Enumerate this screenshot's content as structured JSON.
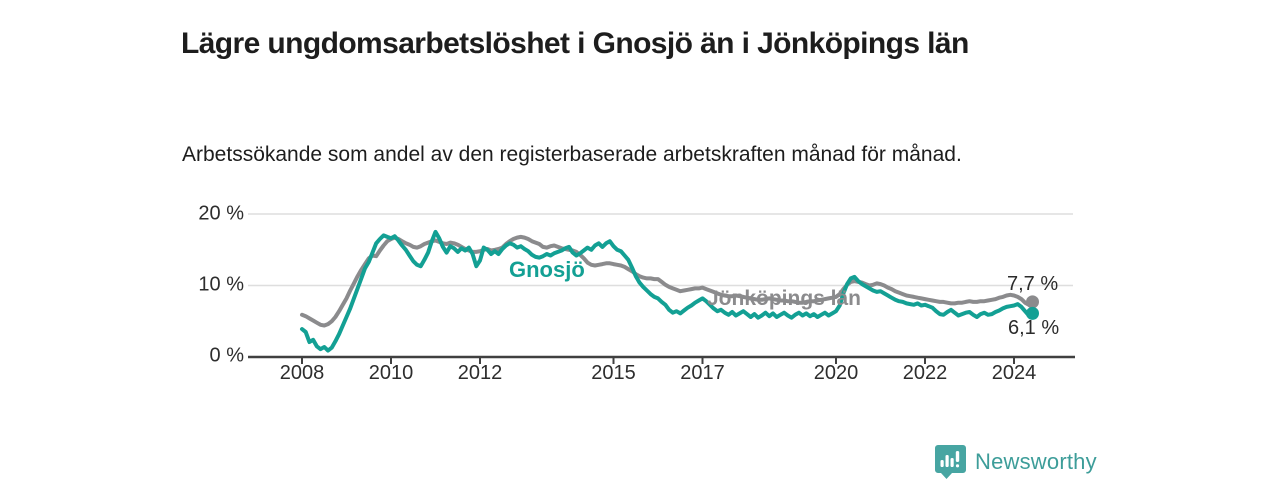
{
  "header": {
    "title": "Lägre ungdomsarbetslöshet i Gnosjö än i Jönköpings län",
    "subtitle": "Arbetssökande som andel av den registerbaserade arbetskraften månad för månad."
  },
  "footer": {
    "brand": "Newsworthy",
    "logo_icon": "bar-chart-speech-bubble-icon"
  },
  "colors": {
    "gnosjo_line": "#13a094",
    "jonkoping_line": "#8b8b8d",
    "grid": "#dedede",
    "axis": "#404040",
    "tick_text": "#2d2d2d",
    "brand_icon": "#47a5a2",
    "brand_text": "#3d9d99"
  },
  "chart_data": {
    "type": "line",
    "title": "Lägre ungdomsarbetslöshet i Gnosjö än i Jönköpings län",
    "subtitle": "Arbetssökande som andel av den registerbaserade arbetskraften månad för månad.",
    "unit": "%",
    "x_start_year": 2008,
    "points_per_year": 12,
    "x_ticks": [
      2008,
      2010,
      2012,
      2015,
      2017,
      2020,
      2022,
      2024
    ],
    "y_tick_labels": [
      "0 %",
      "10 %",
      "20 %"
    ],
    "y_ticks": [
      0,
      10,
      20
    ],
    "ylim": [
      0,
      20
    ],
    "grid": "horizontal-only",
    "legend_position": "inline-labels",
    "series": [
      {
        "name": "Gnosjö",
        "color": "#13a094",
        "end_label": "6,1 %",
        "end_value": 6.1,
        "values": [
          3.9,
          3.5,
          2.1,
          2.4,
          1.5,
          1.1,
          1.4,
          0.9,
          1.3,
          2.2,
          3.2,
          4.4,
          5.6,
          6.8,
          8.2,
          9.6,
          11.0,
          12.4,
          13.3,
          14.6,
          15.9,
          16.5,
          17.0,
          16.8,
          16.6,
          16.9,
          16.3,
          15.6,
          15.0,
          14.2,
          13.4,
          12.9,
          12.7,
          13.6,
          14.6,
          16.2,
          17.5,
          16.6,
          15.4,
          14.6,
          15.5,
          15.2,
          14.7,
          15.2,
          14.9,
          15.3,
          14.4,
          12.7,
          13.5,
          15.3,
          15.0,
          14.4,
          14.8,
          14.4,
          15.1,
          15.6,
          15.9,
          15.7,
          15.3,
          15.5,
          15.1,
          14.8,
          14.3,
          14.0,
          13.9,
          14.1,
          14.4,
          14.2,
          14.5,
          14.7,
          14.9,
          15.2,
          15.4,
          14.6,
          14.2,
          14.5,
          14.9,
          15.3,
          15.0,
          15.6,
          15.9,
          15.4,
          15.9,
          16.2,
          15.5,
          15.0,
          14.8,
          14.2,
          13.6,
          12.5,
          11.3,
          10.4,
          9.8,
          9.3,
          8.8,
          8.4,
          8.2,
          7.7,
          7.3,
          6.6,
          6.2,
          6.4,
          6.1,
          6.5,
          6.9,
          7.2,
          7.6,
          7.9,
          8.2,
          7.8,
          7.3,
          6.8,
          6.4,
          6.6,
          6.2,
          5.9,
          6.3,
          5.8,
          6.1,
          6.4,
          6.0,
          5.6,
          6.0,
          5.5,
          5.8,
          6.2,
          5.7,
          6.1,
          5.6,
          5.9,
          6.2,
          5.8,
          5.5,
          5.9,
          6.2,
          5.8,
          6.1,
          5.7,
          6.0,
          5.6,
          5.9,
          6.2,
          5.8,
          6.1,
          6.4,
          7.2,
          8.9,
          10.2,
          11.0,
          11.2,
          10.6,
          10.2,
          9.9,
          9.6,
          9.3,
          9.1,
          9.2,
          8.9,
          8.6,
          8.3,
          8.0,
          7.8,
          7.7,
          7.5,
          7.4,
          7.3,
          7.5,
          7.2,
          7.3,
          7.1,
          6.9,
          6.4,
          6.0,
          5.9,
          6.3,
          6.6,
          6.2,
          5.8,
          6.0,
          6.2,
          6.3,
          5.9,
          5.6,
          6.0,
          6.2,
          5.9,
          6.0,
          6.3,
          6.5,
          6.8,
          7.0,
          7.1,
          7.2,
          7.4,
          7.0,
          6.4,
          5.8,
          6.1
        ]
      },
      {
        "name": "Jönköpings län",
        "color": "#8b8b8d",
        "end_label": "7,7 %",
        "end_value": 7.7,
        "values": [
          5.9,
          5.7,
          5.4,
          5.1,
          4.8,
          4.5,
          4.4,
          4.6,
          5.0,
          5.6,
          6.4,
          7.3,
          8.2,
          9.3,
          10.3,
          11.3,
          12.2,
          13.0,
          13.8,
          14.2,
          14.1,
          14.9,
          15.6,
          16.2,
          16.5,
          16.7,
          16.5,
          16.2,
          15.9,
          15.7,
          15.4,
          15.3,
          15.5,
          15.8,
          16.0,
          16.2,
          16.3,
          16.1,
          15.9,
          15.8,
          16.0,
          15.9,
          15.7,
          15.4,
          15.1,
          14.9,
          14.7,
          14.7,
          14.8,
          15.0,
          15.1,
          14.9,
          15.0,
          15.1,
          15.3,
          15.8,
          16.2,
          16.5,
          16.7,
          16.8,
          16.7,
          16.5,
          16.2,
          16.0,
          15.8,
          15.4,
          15.3,
          15.5,
          15.6,
          15.4,
          15.2,
          15.1,
          15.0,
          14.9,
          14.7,
          14.3,
          13.8,
          13.2,
          12.9,
          12.8,
          12.9,
          13.0,
          13.1,
          13.1,
          13.0,
          12.9,
          12.8,
          12.6,
          12.3,
          12.0,
          11.6,
          11.3,
          11.1,
          11.0,
          11.0,
          10.9,
          10.9,
          10.5,
          10.1,
          9.8,
          9.6,
          9.4,
          9.2,
          9.3,
          9.4,
          9.5,
          9.6,
          9.6,
          9.7,
          9.5,
          9.3,
          9.1,
          8.9,
          8.7,
          8.6,
          8.5,
          8.5,
          8.6,
          8.5,
          8.4,
          8.3,
          8.2,
          8.1,
          8.0,
          8.0,
          8.1,
          8.2,
          8.1,
          8.0,
          7.9,
          7.9,
          7.8,
          7.8,
          7.7,
          7.6,
          7.6,
          7.7,
          7.8,
          7.8,
          7.9,
          8.0,
          8.1,
          8.2,
          8.3,
          8.4,
          8.8,
          9.5,
          10.1,
          10.5,
          10.6,
          10.5,
          10.4,
          10.2,
          10.0,
          10.1,
          10.3,
          10.2,
          10.0,
          9.7,
          9.5,
          9.2,
          9.0,
          8.8,
          8.6,
          8.5,
          8.4,
          8.3,
          8.2,
          8.1,
          8.0,
          7.9,
          7.8,
          7.7,
          7.7,
          7.6,
          7.5,
          7.5,
          7.6,
          7.6,
          7.7,
          7.8,
          7.7,
          7.7,
          7.8,
          7.8,
          7.9,
          8.0,
          8.1,
          8.3,
          8.4,
          8.6,
          8.7,
          8.6,
          8.4,
          8.1,
          7.6,
          7.3,
          7.7
        ]
      }
    ]
  }
}
